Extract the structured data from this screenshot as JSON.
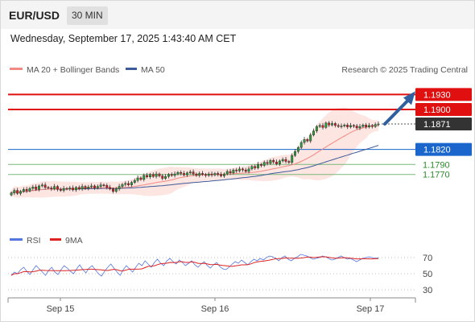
{
  "header": {
    "symbol": "EUR/USD",
    "timeframe": "30 MIN",
    "datetime": "Wednesday, September 17, 2025 1:43:40 AM CET"
  },
  "legend": {
    "ma20": "MA 20 + Bollinger Bands",
    "ma50": "MA 50",
    "credit": "Research © 2025 Trading Central",
    "colors": {
      "ma20": "#f08a82",
      "ma50": "#3d5a99"
    }
  },
  "chart_data": [
    {
      "type": "candlestick",
      "ylim": [
        1.1668,
        1.1958
      ],
      "x_labels": [
        "Sep 15",
        "Sep 16",
        "Sep 17"
      ],
      "levels": [
        {
          "value": 1.193,
          "label": "1.1930",
          "color": "#e01010",
          "style": "resistance"
        },
        {
          "value": 1.19,
          "label": "1.1900",
          "color": "#e01010",
          "style": "resistance"
        },
        {
          "value": 1.1871,
          "label": "1.1871",
          "color": "#333333",
          "style": "last-price"
        },
        {
          "value": 1.182,
          "label": "1.1820",
          "color": "#1a66cc",
          "style": "pivot"
        },
        {
          "value": 1.179,
          "label": "1.1790",
          "color": "#2a8a2a",
          "style": "support"
        },
        {
          "value": 1.177,
          "label": "1.1770",
          "color": "#2a8a2a",
          "style": "support"
        }
      ],
      "closes": [
        1.1733,
        1.1738,
        1.1732,
        1.1736,
        1.174,
        1.1737,
        1.1742,
        1.1745,
        1.174,
        1.1747,
        1.1749,
        1.1744,
        1.1743,
        1.1741,
        1.1746,
        1.174,
        1.1738,
        1.1742,
        1.1741,
        1.1743,
        1.1739,
        1.1744,
        1.1741,
        1.1746,
        1.1742,
        1.1745,
        1.1747,
        1.1743,
        1.1746,
        1.1749,
        1.1748,
        1.1744,
        1.1741,
        1.1736,
        1.1741,
        1.1746,
        1.175,
        1.1752,
        1.1749,
        1.1754,
        1.1758,
        1.1763,
        1.176,
        1.1768,
        1.1765,
        1.177,
        1.1766,
        1.1771,
        1.1767,
        1.1762,
        1.1766,
        1.177,
        1.1768,
        1.1771,
        1.1774,
        1.1772,
        1.1769,
        1.1773,
        1.1775,
        1.1771,
        1.1768,
        1.1772,
        1.177,
        1.1768,
        1.1771,
        1.1769,
        1.1772,
        1.177,
        1.1767,
        1.1771,
        1.1776,
        1.1773,
        1.1779,
        1.1777,
        1.1781,
        1.1779,
        1.1776,
        1.1781,
        1.1786,
        1.1783,
        1.179,
        1.1788,
        1.1794,
        1.1792,
        1.1798,
        1.1795,
        1.1791,
        1.1797,
        1.18,
        1.1796,
        1.1794,
        1.1808,
        1.1816,
        1.1824,
        1.1834,
        1.184,
        1.1837,
        1.1849,
        1.1857,
        1.1866,
        1.1868,
        1.1864,
        1.1873,
        1.1869,
        1.1872,
        1.1868,
        1.1866,
        1.1867,
        1.1869,
        1.1865,
        1.1868,
        1.1867,
        1.1863,
        1.1866,
        1.1869,
        1.1865,
        1.1868,
        1.1866,
        1.187,
        1.1871
      ],
      "ma20_end": 1.1858,
      "ma50_end": 1.1818,
      "projection": {
        "from": 1.1871,
        "to": 1.193
      }
    },
    {
      "type": "line",
      "name": "RSI",
      "series_labels": {
        "rsi": "RSI",
        "ma": "9MA"
      },
      "colors": {
        "rsi": "#5577dd",
        "ma": "#dd2222"
      },
      "ylim": [
        22,
        78
      ],
      "y_ticks": [
        {
          "value": 70,
          "label": "70"
        },
        {
          "value": 50,
          "label": "50"
        },
        {
          "value": 30,
          "label": "30"
        }
      ],
      "rsi": [
        48,
        52,
        50,
        55,
        58,
        53,
        49,
        55,
        60,
        56,
        52,
        48,
        54,
        58,
        52,
        49,
        55,
        60,
        57,
        53,
        50,
        56,
        61,
        55,
        51,
        57,
        60,
        55,
        50,
        47,
        53,
        58,
        62,
        57,
        52,
        48,
        55,
        60,
        56,
        52,
        58,
        63,
        60,
        66,
        62,
        58,
        64,
        68,
        63,
        60,
        66,
        69,
        65,
        62,
        67,
        64,
        60,
        63,
        66,
        61,
        58,
        62,
        65,
        60,
        57,
        61,
        64,
        59,
        56,
        55,
        58,
        62,
        65,
        63,
        67,
        64,
        61,
        65,
        68,
        66,
        69,
        67,
        70,
        72,
        71,
        69,
        66,
        70,
        72,
        68,
        66,
        69,
        71,
        74,
        73,
        72,
        70,
        68,
        69,
        70,
        72,
        71,
        69,
        67,
        68,
        70,
        72,
        70,
        68,
        69,
        67,
        65,
        67,
        69,
        70,
        71,
        70,
        69,
        70
      ],
      "ma_start": 48,
      "ma_end": 68.5
    }
  ]
}
